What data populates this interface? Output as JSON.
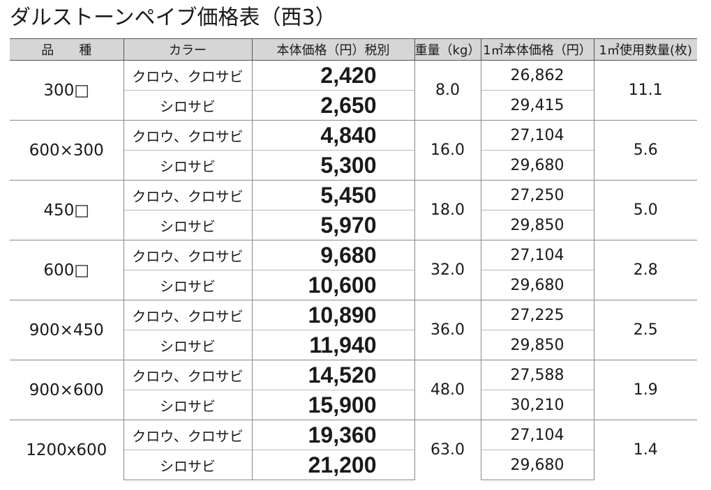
{
  "title": "ダルストーンペイブ価格表（西3）",
  "headers": {
    "variety": "品　　種",
    "color": "カラー",
    "price": "本体価格（円）税別",
    "weight": "重量（kg）",
    "unit_price": "1㎡本体価格（円）",
    "usage": "1㎡使用数量(枚)"
  },
  "rows": [
    {
      "variety": "300□",
      "weight": "8.0",
      "usage": "11.1",
      "items": [
        {
          "color": "クロウ、クロサビ",
          "price": "2,420",
          "unit_price": "26,862"
        },
        {
          "color": "シロサビ",
          "price": "2,650",
          "unit_price": "29,415"
        }
      ]
    },
    {
      "variety": "600×300",
      "weight": "16.0",
      "usage": "5.6",
      "items": [
        {
          "color": "クロウ、クロサビ",
          "price": "4,840",
          "unit_price": "27,104"
        },
        {
          "color": "シロサビ",
          "price": "5,300",
          "unit_price": "29,680"
        }
      ]
    },
    {
      "variety": "450□",
      "weight": "18.0",
      "usage": "5.0",
      "items": [
        {
          "color": "クロウ、クロサビ",
          "price": "5,450",
          "unit_price": "27,250"
        },
        {
          "color": "シロサビ",
          "price": "5,970",
          "unit_price": "29,850"
        }
      ]
    },
    {
      "variety": "600□",
      "weight": "32.0",
      "usage": "2.8",
      "items": [
        {
          "color": "クロウ、クロサビ",
          "price": "9,680",
          "unit_price": "27,104"
        },
        {
          "color": "シロサビ",
          "price": "10,600",
          "unit_price": "29,680"
        }
      ]
    },
    {
      "variety": "900×450",
      "weight": "36.0",
      "usage": "2.5",
      "items": [
        {
          "color": "クロウ、クロサビ",
          "price": "10,890",
          "unit_price": "27,225"
        },
        {
          "color": "シロサビ",
          "price": "11,940",
          "unit_price": "29,850"
        }
      ]
    },
    {
      "variety": "900×600",
      "weight": "48.0",
      "usage": "1.9",
      "items": [
        {
          "color": "クロウ、クロサビ",
          "price": "14,520",
          "unit_price": "27,588"
        },
        {
          "color": "シロサビ",
          "price": "15,900",
          "unit_price": "30,210"
        }
      ]
    },
    {
      "variety": "1200x600",
      "weight": "63.0",
      "usage": "1.4",
      "items": [
        {
          "color": "クロウ、クロサビ",
          "price": "19,360",
          "unit_price": "27,104"
        },
        {
          "color": "シロサビ",
          "price": "21,200",
          "unit_price": "29,680"
        }
      ]
    }
  ]
}
